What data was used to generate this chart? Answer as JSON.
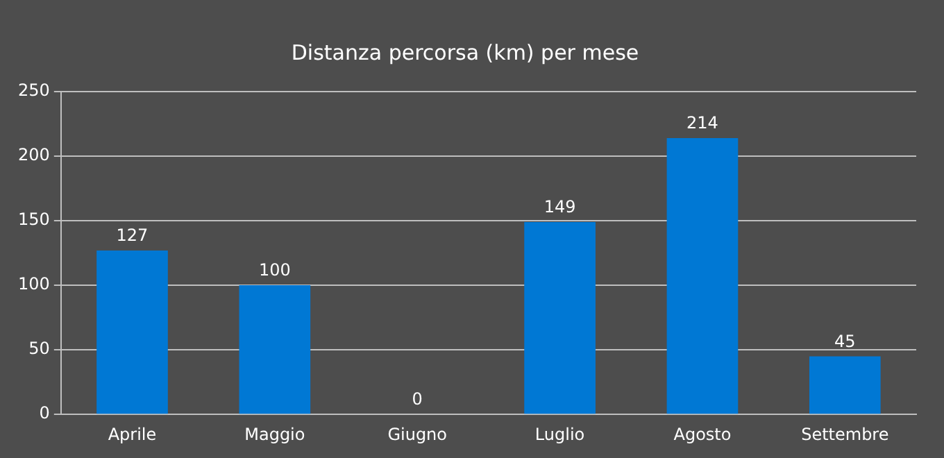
{
  "chart_data": {
    "type": "bar",
    "title": "Distanza percorsa (km) per mese",
    "categories": [
      "Aprile",
      "Maggio",
      "Giugno",
      "Luglio",
      "Agosto",
      "Settembre"
    ],
    "values": [
      127,
      100,
      0,
      149,
      214,
      45
    ],
    "color": "#0078d4",
    "ylim": [
      0,
      250
    ],
    "yticks": [
      0,
      50,
      100,
      150,
      200,
      250
    ],
    "grid": "y",
    "data_labels": true,
    "legend": false
  }
}
